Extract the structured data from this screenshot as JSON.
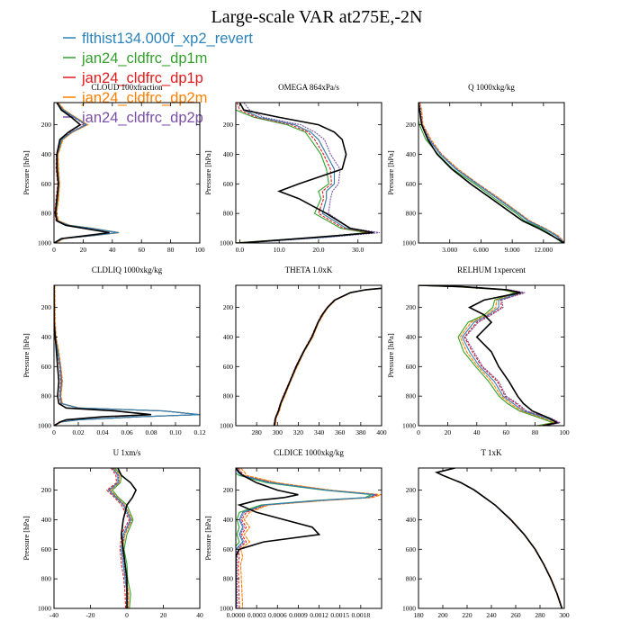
{
  "figure": {
    "title": "Large-scale VAR at275E,-2N",
    "legend": [
      {
        "name": "flthist134.000f_xp2_revert",
        "color": "#2b83ba"
      },
      {
        "name": "jan24_cldfrc_dp1m",
        "color": "#33a02c"
      },
      {
        "name": "jan24_cldfrc_dp1p",
        "color": "#e31a1c"
      },
      {
        "name": "jan24_cldfrc_dp2m",
        "color": "#ff7f00"
      },
      {
        "name": "jan24_cldfrc_dp2p",
        "color": "#7b4fa8"
      }
    ],
    "control": {
      "color": "#000000"
    }
  },
  "chart_data": [
    {
      "type": "line",
      "title": "CLOUD 100xfraction",
      "ylabel": "Pressure [hPa]",
      "xlim": [
        0,
        100
      ],
      "ylim": [
        1000,
        50
      ],
      "xticks": [
        0,
        20,
        40,
        60,
        80,
        100
      ],
      "xticklabels": [
        "0",
        "20",
        "40",
        "60",
        "80",
        "100"
      ],
      "yticks": [
        200,
        400,
        600,
        800,
        1000
      ],
      "p": [
        50,
        100,
        150,
        200,
        250,
        300,
        400,
        500,
        600,
        700,
        800,
        850,
        880,
        900,
        930,
        950,
        970,
        1000
      ],
      "control": [
        2,
        5,
        12,
        18,
        10,
        4,
        2,
        2,
        3,
        2,
        1,
        2,
        8,
        20,
        38,
        22,
        5,
        0
      ],
      "series": [
        [
          2,
          6,
          14,
          22,
          12,
          5,
          2,
          2,
          3,
          2,
          1,
          2,
          10,
          25,
          44,
          26,
          6,
          0
        ]
      ],
      "offsets": [
        0,
        0.8,
        -0.6,
        1.2,
        0.4
      ]
    },
    {
      "type": "line",
      "title": "OMEGA 864xPa/s",
      "ylabel": "Pressure [hPa]",
      "xlim": [
        -1,
        36
      ],
      "ylim": [
        1000,
        50
      ],
      "xticks": [
        0,
        10,
        20,
        30
      ],
      "xticklabels": [
        "0.0",
        "10.0",
        "20.0",
        "30.0"
      ],
      "yticks": [
        200,
        400,
        600,
        800,
        1000
      ],
      "p": [
        50,
        100,
        150,
        200,
        250,
        300,
        400,
        500,
        600,
        650,
        700,
        800,
        900,
        930,
        960,
        1000
      ],
      "control": [
        0,
        1,
        10,
        20,
        24,
        26,
        27,
        26,
        15,
        10,
        15,
        22,
        28,
        34,
        20,
        0
      ],
      "series": [
        [
          0,
          1,
          5,
          14,
          18,
          20,
          22,
          24,
          24,
          22,
          22,
          21,
          27,
          34,
          22,
          0
        ]
      ],
      "offsets": [
        0.5,
        -2,
        -1,
        0,
        1.5
      ]
    },
    {
      "type": "line",
      "title": "Q 1000xkg/kg",
      "ylabel": "Pressure [hPa]",
      "xlim": [
        0,
        14
      ],
      "ylim": [
        1000,
        50
      ],
      "xticks": [
        3,
        6,
        9,
        12
      ],
      "xticklabels": [
        "3.000",
        "6.000",
        "9.000",
        "12.000"
      ],
      "yticks": [
        200,
        400,
        600,
        800,
        1000
      ],
      "p": [
        50,
        100,
        200,
        300,
        400,
        500,
        600,
        700,
        800,
        850,
        900,
        950,
        1000
      ],
      "control": [
        0.0,
        0.1,
        0.3,
        0.9,
        1.8,
        3.2,
        5.0,
        7.0,
        9.0,
        10.0,
        11.5,
        12.8,
        14.0
      ],
      "series": [
        [
          0.0,
          0.1,
          0.3,
          1.0,
          2.1,
          3.6,
          5.6,
          7.6,
          9.6,
          10.5,
          12.0,
          13.2,
          14.0
        ]
      ],
      "offsets": [
        0,
        -0.3,
        0,
        0.2,
        0.1
      ]
    },
    {
      "type": "line",
      "title": "CLDLIQ 1000xkg/kg",
      "ylabel": "Pressure [hPa]",
      "xlim": [
        0,
        0.12
      ],
      "ylim": [
        1000,
        50
      ],
      "xticks": [
        0,
        0.02,
        0.04,
        0.06,
        0.08,
        0.1,
        0.12
      ],
      "xticklabels": [
        "0",
        "0.02",
        "0.04",
        "0.06",
        "0.08",
        "0.10",
        "0.12"
      ],
      "yticks": [
        200,
        400,
        600,
        800,
        1000
      ],
      "p": [
        50,
        300,
        400,
        500,
        600,
        700,
        800,
        850,
        880,
        900,
        925,
        940,
        960,
        975,
        1000
      ],
      "control": [
        0,
        0,
        0.001,
        0.002,
        0.003,
        0.004,
        0.003,
        0.004,
        0.01,
        0.05,
        0.08,
        0.04,
        0.01,
        0.005,
        0
      ],
      "series": [
        [
          0,
          0,
          0.001,
          0.003,
          0.005,
          0.006,
          0.005,
          0.006,
          0.02,
          0.09,
          0.12,
          0.07,
          0.02,
          0.005,
          0
        ]
      ],
      "offsets": [
        0,
        0.0005,
        -0.0005,
        0.001,
        0.0003
      ]
    },
    {
      "type": "line",
      "title": "THETA 1.0xK",
      "ylabel": "",
      "xlim": [
        260,
        400
      ],
      "ylim": [
        1000,
        50
      ],
      "xticks": [
        280,
        300,
        320,
        340,
        360,
        380,
        400
      ],
      "xticklabels": [
        "280",
        "300",
        "320",
        "340",
        "360",
        "380",
        "400"
      ],
      "yticks": [
        200,
        400,
        600,
        800,
        1000
      ],
      "p": [
        70,
        80,
        100,
        150,
        200,
        250,
        300,
        400,
        500,
        600,
        700,
        800,
        850,
        900,
        950,
        1000
      ],
      "control": [
        400,
        385,
        370,
        355,
        348,
        343,
        339,
        333,
        325,
        318,
        312,
        306,
        303,
        301,
        298,
        297
      ],
      "series": [
        [
          400,
          385,
          370,
          355,
          348,
          343,
          339,
          333,
          325,
          318,
          312,
          306,
          303,
          301,
          298,
          297
        ]
      ],
      "offsets": [
        0,
        0.5,
        -0.5,
        1,
        0.3
      ]
    },
    {
      "type": "line",
      "title": "RELHUM 1xpercent",
      "ylabel": "Pressure [hPa]",
      "xlim": [
        0,
        100
      ],
      "ylim": [
        1000,
        50
      ],
      "xticks": [
        0,
        20,
        40,
        60,
        80,
        100
      ],
      "xticklabels": [
        "0",
        "20",
        "40",
        "60",
        "80",
        "100"
      ],
      "yticks": [
        200,
        400,
        600,
        800,
        1000
      ],
      "p": [
        50,
        60,
        80,
        100,
        150,
        200,
        250,
        300,
        400,
        500,
        600,
        700,
        800,
        850,
        900,
        950,
        980,
        1000
      ],
      "control": [
        0,
        30,
        60,
        70,
        45,
        35,
        45,
        50,
        40,
        50,
        55,
        62,
        68,
        72,
        78,
        90,
        95,
        85
      ],
      "series": [
        [
          0,
          30,
          60,
          70,
          55,
          55,
          48,
          38,
          30,
          35,
          42,
          52,
          58,
          65,
          72,
          88,
          95,
          85
        ]
      ],
      "offsets": [
        0,
        -4,
        2,
        -2,
        3
      ]
    },
    {
      "type": "line",
      "title": "U 1xm/s",
      "ylabel": "Pressure [hPa]",
      "xlim": [
        -40,
        40
      ],
      "ylim": [
        1000,
        50
      ],
      "xticks": [
        -40,
        -20,
        0,
        20,
        40
      ],
      "xticklabels": [
        "-40",
        "-20",
        "0",
        "20",
        "40"
      ],
      "yticks": [
        200,
        400,
        600,
        800,
        1000
      ],
      "p": [
        50,
        100,
        150,
        200,
        250,
        300,
        400,
        500,
        600,
        700,
        800,
        900,
        1000
      ],
      "control": [
        -5,
        -3,
        2,
        5,
        3,
        0,
        -2,
        -3,
        -2,
        -1,
        0,
        0,
        0
      ],
      "series": [
        [
          -8,
          -5,
          -5,
          -10,
          -6,
          -2,
          2,
          -2,
          -3,
          -2,
          -1,
          0,
          0
        ]
      ],
      "offsets": [
        0,
        2,
        -1,
        1,
        0.5
      ]
    },
    {
      "type": "line",
      "title": "CLDICE 1000xkg/kg",
      "ylabel": "Pressure [hPa]",
      "xlim": [
        0,
        0.0021
      ],
      "ylim": [
        1000,
        50
      ],
      "xticks": [
        0,
        0.0003,
        0.0006,
        0.0009,
        0.0012,
        0.0015,
        0.0018
      ],
      "xticklabels": [
        "0.0000",
        "0.0003",
        "0.0006",
        "0.0009",
        "0.0012",
        "0.0015",
        "0.0018"
      ],
      "yticks": [
        200,
        400,
        600,
        800,
        1000
      ],
      "p": [
        50,
        80,
        100,
        150,
        200,
        230,
        250,
        270,
        300,
        350,
        400,
        450,
        500,
        550,
        600,
        650,
        700,
        1000
      ],
      "control": [
        0,
        5e-05,
        0.0001,
        0.0003,
        0.0006,
        0.0009,
        0.0007,
        0.0003,
        5e-05,
        0.0003,
        0.0007,
        0.0011,
        0.0012,
        0.0004,
        5e-05,
        0,
        0,
        0
      ],
      "series": [
        [
          0,
          3e-05,
          8e-05,
          0.0005,
          0.0013,
          0.002,
          0.0019,
          0.0012,
          0.0004,
          0.0001,
          5e-05,
          0.0001,
          5e-05,
          0.0001,
          0,
          0,
          0,
          0
        ]
      ],
      "offsets": [
        0,
        -5e-05,
        5e-05,
        0.0001,
        2e-05
      ]
    },
    {
      "type": "line",
      "title": "T 1xK",
      "ylabel": "",
      "xlim": [
        180,
        300
      ],
      "ylim": [
        1000,
        50
      ],
      "xticks": [
        180,
        200,
        220,
        240,
        260,
        280,
        300
      ],
      "xticklabels": [
        "180",
        "200",
        "220",
        "240",
        "260",
        "280",
        "300"
      ],
      "yticks": [
        200,
        400,
        600,
        800,
        1000
      ],
      "p": [
        50,
        70,
        80,
        100,
        150,
        200,
        300,
        400,
        500,
        600,
        700,
        800,
        900,
        950,
        1000
      ],
      "control": [
        210,
        200,
        195,
        200,
        215,
        226,
        243,
        256,
        267,
        276,
        283,
        289,
        294,
        296,
        298
      ],
      "series": [
        [
          210,
          200,
          195,
          200,
          215,
          226,
          243,
          256,
          267,
          276,
          283,
          289,
          294,
          296,
          298
        ]
      ],
      "offsets": [
        0,
        0.2,
        -0.2,
        0.4,
        0.1
      ]
    }
  ]
}
